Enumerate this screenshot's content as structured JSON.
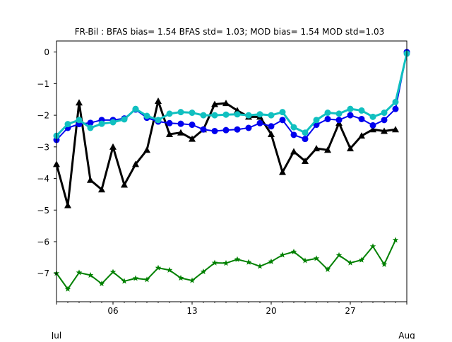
{
  "chart_data": {
    "type": "line",
    "title": "FR-Bil   : BFAS bias= 1.54 BFAS std= 1.03; MOD bias= 1.54 MOD std=1.03",
    "xlabel": "",
    "ylabel": "",
    "x_start_day": 1,
    "x_end_day": 32,
    "xlim": [
      1,
      32
    ],
    "ylim": [
      -7.9,
      0.35
    ],
    "x_ticks": [
      {
        "day": 6,
        "label": "06"
      },
      {
        "day": 13,
        "label": "13"
      },
      {
        "day": 20,
        "label": "20"
      },
      {
        "day": 27,
        "label": "27"
      }
    ],
    "x_edge_labels": {
      "start": "Jul",
      "end": "Aug"
    },
    "y_ticks": [
      0,
      -1,
      -2,
      -3,
      -4,
      -5,
      -6,
      -7
    ],
    "y_tick_labels": [
      "0",
      "−1",
      "−2",
      "−3",
      "−4",
      "−5",
      "−6",
      "−7"
    ],
    "grid": false,
    "series": [
      {
        "color": "#000000",
        "marker": "triangle",
        "line_width": 3,
        "x": [
          1,
          2,
          3,
          4,
          5,
          6,
          7,
          8,
          9,
          10,
          11,
          12,
          13,
          14,
          15,
          16,
          17,
          18,
          19,
          20,
          21,
          22,
          23,
          24,
          25,
          26,
          27,
          28,
          29,
          30,
          31
        ],
        "y": [
          -3.55,
          -4.85,
          -1.6,
          -4.05,
          -4.35,
          -3.0,
          -4.2,
          -3.55,
          -3.1,
          -1.55,
          -2.6,
          -2.55,
          -2.75,
          -2.45,
          -1.65,
          -1.62,
          -1.85,
          -2.05,
          -2.05,
          -2.6,
          -3.8,
          -3.15,
          -3.45,
          -3.05,
          -3.1,
          -2.25,
          -3.05,
          -2.65,
          -2.45,
          -2.5,
          -2.45
        ]
      },
      {
        "color": "#0000ee",
        "marker": "circle",
        "line_width": 2,
        "x": [
          1,
          2,
          3,
          4,
          5,
          6,
          7,
          8,
          9,
          10,
          11,
          12,
          13,
          14,
          15,
          16,
          17,
          18,
          19,
          20,
          21,
          22,
          23,
          24,
          25,
          26,
          27,
          28,
          29,
          30,
          31,
          32
        ],
        "y": [
          -2.78,
          -2.4,
          -2.28,
          -2.24,
          -2.15,
          -2.15,
          -2.1,
          -1.82,
          -2.08,
          -2.2,
          -2.25,
          -2.27,
          -2.3,
          -2.45,
          -2.5,
          -2.47,
          -2.45,
          -2.4,
          -2.25,
          -2.35,
          -2.15,
          -2.62,
          -2.75,
          -2.3,
          -2.12,
          -2.15,
          -2.0,
          -2.12,
          -2.32,
          -2.15,
          -1.8,
          0.0
        ]
      },
      {
        "color": "#10c0c0",
        "marker": "circle",
        "line_width": 3,
        "x": [
          1,
          2,
          3,
          4,
          5,
          6,
          7,
          8,
          9,
          10,
          11,
          12,
          13,
          14,
          15,
          16,
          17,
          18,
          19,
          20,
          21,
          22,
          23,
          24,
          25,
          26,
          27,
          28,
          29,
          30,
          31,
          32
        ],
        "y": [
          -2.65,
          -2.28,
          -2.15,
          -2.4,
          -2.27,
          -2.22,
          -2.13,
          -1.8,
          -2.02,
          -2.15,
          -1.95,
          -1.9,
          -1.92,
          -2.0,
          -2.0,
          -1.98,
          -1.97,
          -2.0,
          -1.97,
          -2.0,
          -1.9,
          -2.38,
          -2.55,
          -2.15,
          -1.92,
          -1.95,
          -1.8,
          -1.85,
          -2.05,
          -1.92,
          -1.58,
          -0.05
        ]
      },
      {
        "color": "#008000",
        "marker": "star",
        "line_width": 2,
        "x": [
          1,
          2,
          3,
          4,
          5,
          6,
          7,
          8,
          9,
          10,
          11,
          12,
          13,
          14,
          15,
          16,
          17,
          18,
          19,
          20,
          21,
          22,
          23,
          24,
          25,
          26,
          27,
          28,
          29,
          30,
          31
        ],
        "y": [
          -7.0,
          -7.5,
          -6.98,
          -7.06,
          -7.33,
          -6.96,
          -7.25,
          -7.16,
          -7.2,
          -6.83,
          -6.9,
          -7.15,
          -7.23,
          -6.95,
          -6.67,
          -6.68,
          -6.56,
          -6.65,
          -6.78,
          -6.63,
          -6.42,
          -6.32,
          -6.6,
          -6.53,
          -6.88,
          -6.43,
          -6.67,
          -6.58,
          -6.15,
          -6.72,
          -5.95
        ]
      }
    ]
  }
}
